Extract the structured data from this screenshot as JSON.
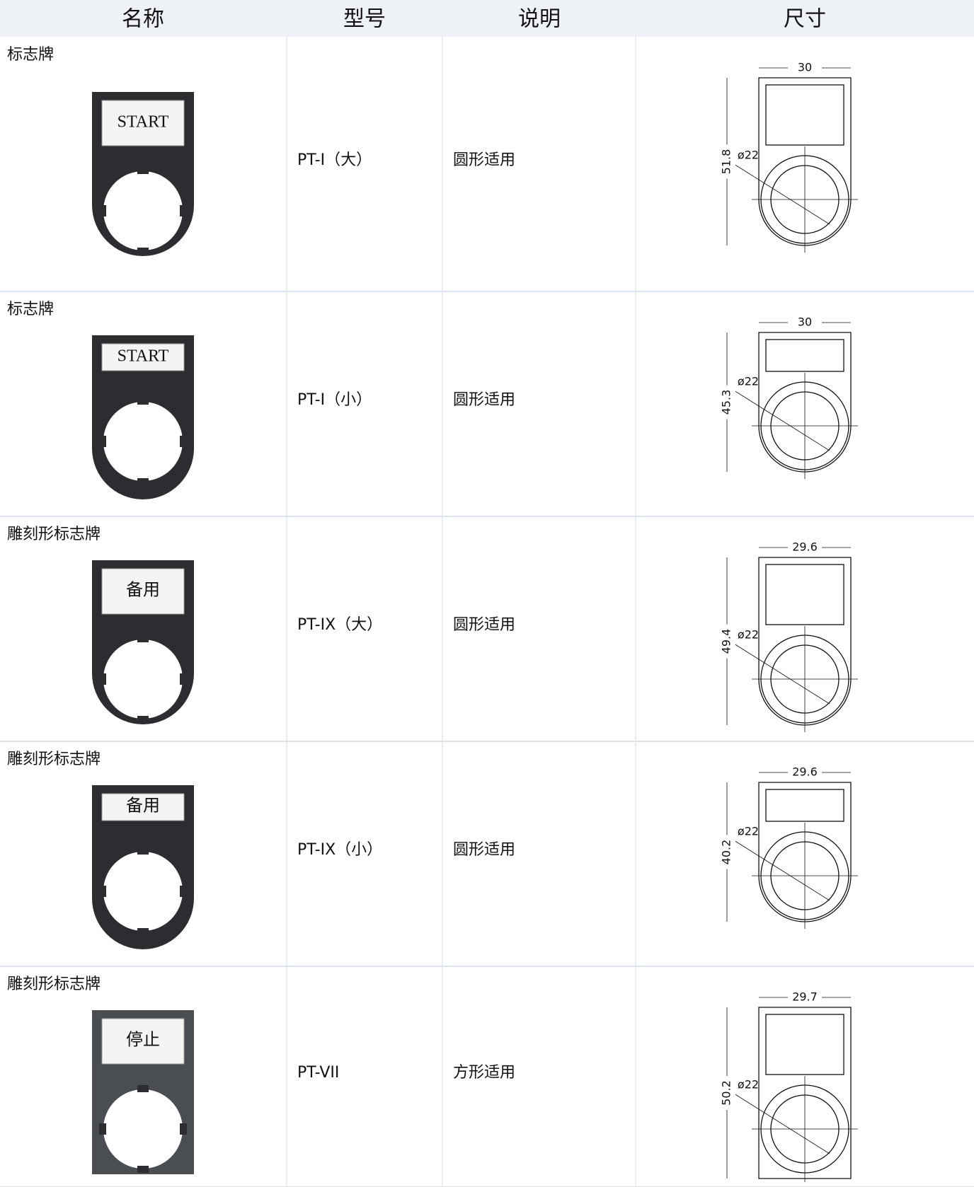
{
  "header": [
    "名称",
    "型号",
    "说明",
    "尺寸"
  ],
  "rows": [
    {
      "name": "标志牌",
      "label": "START",
      "model": "PT-I（大）",
      "desc": "圆形适用",
      "width": "30",
      "height": "51.8",
      "diameter": "ø22"
    },
    {
      "name": "标志牌",
      "label": "START",
      "model": "PT-I（小）",
      "desc": "圆形适用",
      "width": "30",
      "height": "45.3",
      "diameter": "ø22"
    },
    {
      "name": "雕刻形标志牌",
      "label": "备用",
      "model": "PT-IX（大）",
      "desc": "圆形适用",
      "width": "29.6",
      "height": "49.4",
      "diameter": "ø22"
    },
    {
      "name": "雕刻形标志牌",
      "label": "备用",
      "model": "PT-IX（小）",
      "desc": "圆形适用",
      "width": "29.6",
      "height": "40.2",
      "diameter": "ø22"
    },
    {
      "name": "雕刻形标志牌",
      "label": "停止",
      "model": "PT-VII",
      "desc": "方形适用",
      "width": "29.7",
      "height": "50.2",
      "diameter": "ø22"
    }
  ]
}
